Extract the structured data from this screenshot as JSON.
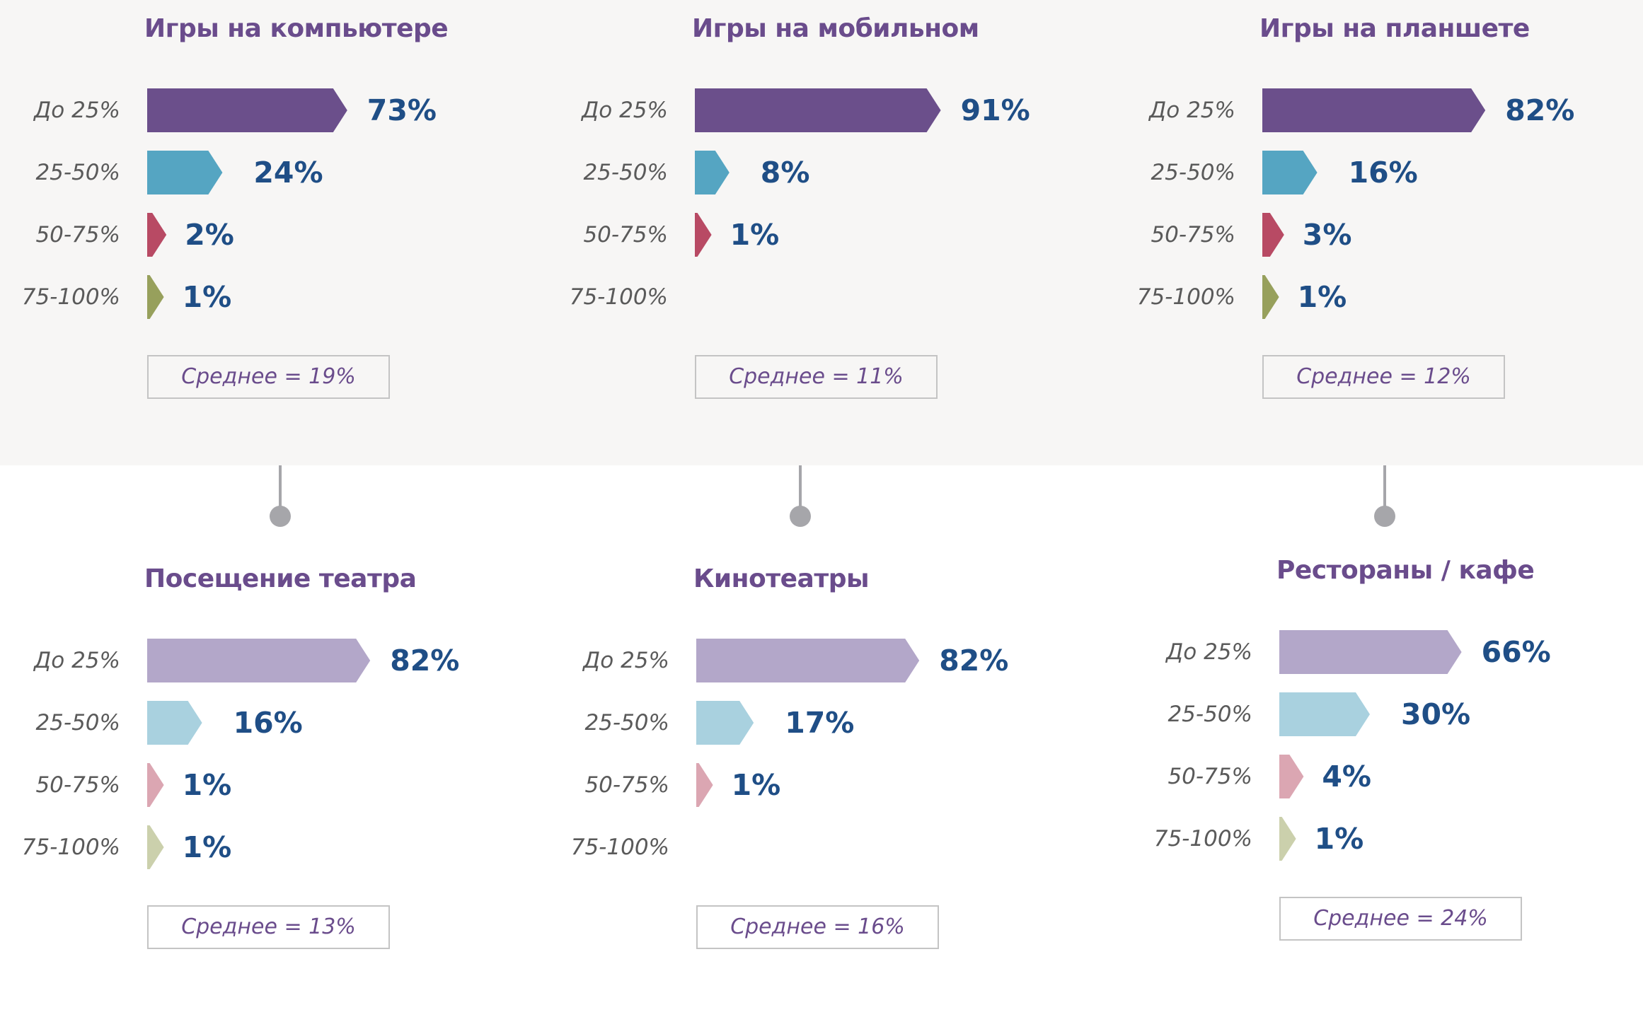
{
  "colors": {
    "title": "#6a4c8c",
    "value_text": "#1f4e86",
    "label_text": "#5a5a5a",
    "band_bg": "#f7f6f5",
    "connector": "#a6a6aa",
    "dark_series": [
      "#6b4f8b",
      "#55a5c2",
      "#b84a64",
      "#97a05c"
    ],
    "light_series": [
      "#b3a7c9",
      "#a9d1df",
      "#dba6b2",
      "#cbd0ac"
    ]
  },
  "chart_data": [
    {
      "type": "bar",
      "title": "Игры на компьютере",
      "categories": [
        "До 25%",
        "25-50%",
        "50-75%",
        "75-100%"
      ],
      "values": [
        73,
        24,
        2,
        1
      ],
      "value_labels": [
        "73%",
        "24%",
        "2%",
        "1%"
      ],
      "average": "Среднее = 19%",
      "palette": "dark"
    },
    {
      "type": "bar",
      "title": "Игры на мобильном",
      "categories": [
        "До 25%",
        "25-50%",
        "50-75%",
        "75-100%"
      ],
      "values": [
        91,
        8,
        1,
        null
      ],
      "value_labels": [
        "91%",
        "8%",
        "1%",
        ""
      ],
      "average": "Среднее = 11%",
      "palette": "dark"
    },
    {
      "type": "bar",
      "title": "Игры на планшете",
      "categories": [
        "До 25%",
        "25-50%",
        "50-75%",
        "75-100%"
      ],
      "values": [
        82,
        16,
        3,
        1
      ],
      "value_labels": [
        "82%",
        "16%",
        "3%",
        "1%"
      ],
      "average": "Среднее = 12%",
      "palette": "dark"
    },
    {
      "type": "bar",
      "title": "Посещение театра",
      "categories": [
        "До 25%",
        "25-50%",
        "50-75%",
        "75-100%"
      ],
      "values": [
        82,
        16,
        1,
        1
      ],
      "value_labels": [
        "82%",
        "16%",
        "1%",
        "1%"
      ],
      "average": "Среднее = 13%",
      "palette": "light"
    },
    {
      "type": "bar",
      "title": "Кинотеатры",
      "categories": [
        "До 25%",
        "25-50%",
        "50-75%",
        "75-100%"
      ],
      "values": [
        82,
        17,
        1,
        null
      ],
      "value_labels": [
        "82%",
        "17%",
        "1%",
        ""
      ],
      "average": "Среднее = 16%",
      "palette": "light"
    },
    {
      "type": "bar",
      "title": "Рестораны / кафе",
      "categories": [
        "До 25%",
        "25-50%",
        "50-75%",
        "75-100%"
      ],
      "values": [
        66,
        30,
        4,
        1
      ],
      "value_labels": [
        "66%",
        "30%",
        "4%",
        "1%"
      ],
      "average": "Среднее = 24%",
      "palette": "light"
    }
  ]
}
